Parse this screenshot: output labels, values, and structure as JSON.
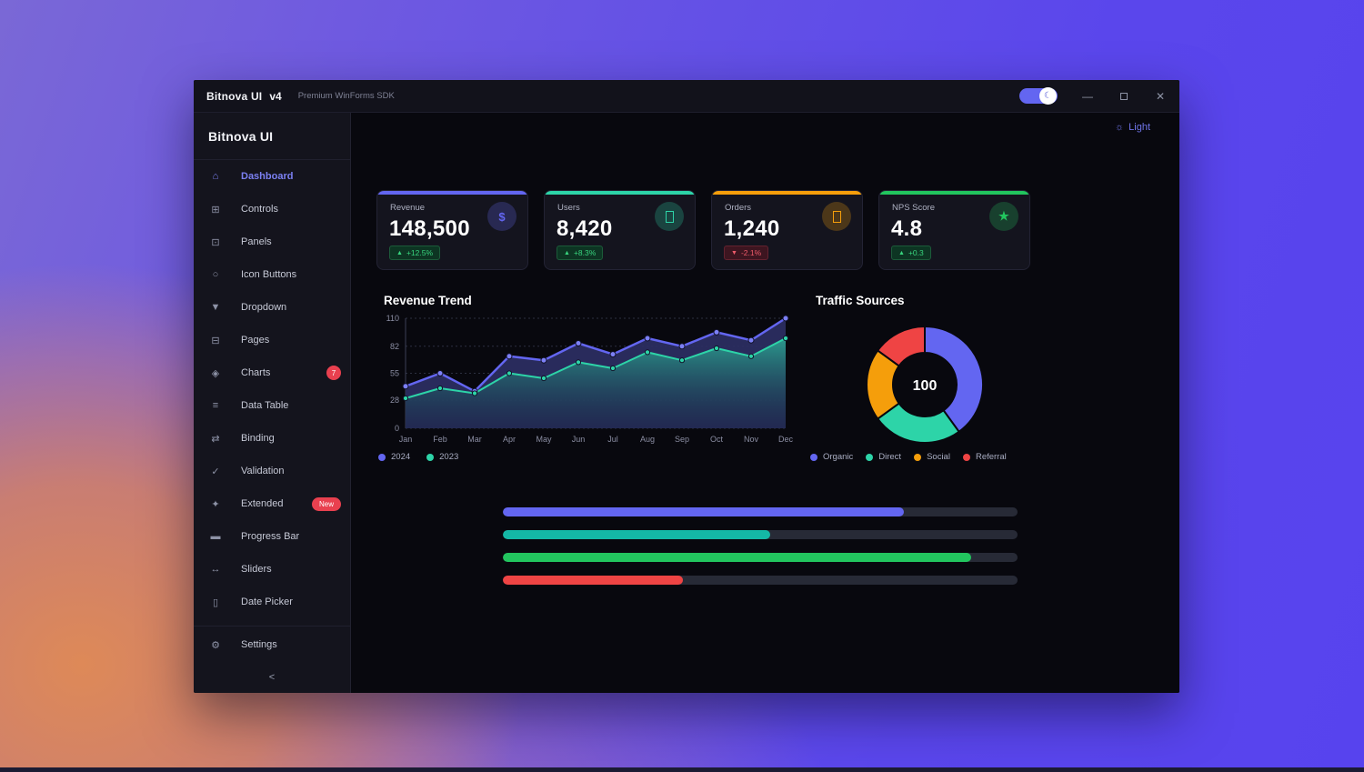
{
  "titlebar": {
    "app_title": "Bitnova UI",
    "app_version": "v4",
    "subtitle": "Premium WinForms SDK",
    "theme_toggle": {
      "state": "on",
      "knob_icon": "moon-icon",
      "knob_glyph": "☾"
    },
    "window_controls": {
      "minimize_glyph": "—",
      "close_glyph": "✕"
    }
  },
  "sidebar": {
    "brand": "Bitnova UI",
    "items": [
      {
        "label": "Dashboard",
        "icon": "home-icon",
        "active": true
      },
      {
        "label": "Controls",
        "icon": "grid-icon"
      },
      {
        "label": "Panels",
        "icon": "panel-icon"
      },
      {
        "label": "Icon Buttons",
        "icon": "circle-icon"
      },
      {
        "label": "Dropdown",
        "icon": "dropdown-icon"
      },
      {
        "label": "Pages",
        "icon": "pages-icon"
      },
      {
        "label": "Charts",
        "icon": "charts-icon",
        "badge": {
          "text": "7",
          "shape": "circle"
        }
      },
      {
        "label": "Data Table",
        "icon": "list-icon"
      },
      {
        "label": "Binding",
        "icon": "swap-icon"
      },
      {
        "label": "Validation",
        "icon": "check-icon"
      },
      {
        "label": "Extended",
        "icon": "sparkle-icon",
        "badge": {
          "text": "New",
          "shape": "pill"
        }
      },
      {
        "label": "Progress Bar",
        "icon": "progress-icon"
      },
      {
        "label": "Sliders",
        "icon": "slider-icon"
      },
      {
        "label": "Date Picker",
        "icon": "calendar-icon"
      }
    ],
    "footer_item": {
      "label": "Settings",
      "icon": "gear-icon"
    },
    "collapse_glyph": "<"
  },
  "main": {
    "theme_button_label": "Light",
    "theme_button_icon": "sun-icon"
  },
  "stat_cards": [
    {
      "label": "Revenue",
      "value": "148,500",
      "delta": "+12.5%",
      "trend": "up",
      "accent": "#6366f1",
      "icon": "dollar-icon",
      "icon_glyph": "$"
    },
    {
      "label": "Users",
      "value": "8,420",
      "delta": "+8.3%",
      "trend": "up",
      "accent": "#2dd4a8",
      "icon": "users-icon",
      "icon_glyph": ""
    },
    {
      "label": "Orders",
      "value": "1,240",
      "delta": "-2.1%",
      "trend": "down",
      "accent": "#f59e0b",
      "icon": "orders-icon",
      "icon_glyph": ""
    },
    {
      "label": "NPS Score",
      "value": "4.8",
      "delta": "+0.3",
      "trend": "up",
      "accent": "#22c55e",
      "icon": "star-icon",
      "icon_glyph": "★"
    }
  ],
  "chart_data": [
    {
      "type": "area",
      "title": "Revenue Trend",
      "x": [
        "Jan",
        "Feb",
        "Mar",
        "Apr",
        "May",
        "Jun",
        "Jul",
        "Aug",
        "Sep",
        "Oct",
        "Nov",
        "Dec"
      ],
      "series": [
        {
          "name": "2024",
          "color": "#6366f1",
          "values": [
            42,
            55,
            37,
            72,
            68,
            85,
            74,
            90,
            82,
            96,
            88,
            110
          ]
        },
        {
          "name": "2023",
          "color": "#2dd4a8",
          "values": [
            30,
            40,
            35,
            55,
            50,
            66,
            60,
            76,
            68,
            80,
            72,
            90
          ]
        }
      ],
      "ylim": [
        0,
        110
      ],
      "yticks": [
        0,
        28,
        55,
        82,
        110
      ],
      "grid": true,
      "legend_position": "bottom"
    },
    {
      "type": "pie",
      "title": "Traffic Sources",
      "donut": true,
      "center_label": "100",
      "slices": [
        {
          "label": "Organic",
          "value": 40,
          "color": "#6366f1"
        },
        {
          "label": "Direct",
          "value": 25,
          "color": "#2dd4a8"
        },
        {
          "label": "Social",
          "value": 20,
          "color": "#f59e0b"
        },
        {
          "label": "Referral",
          "value": 15,
          "color": "#ef4444"
        }
      ],
      "legend_position": "bottom"
    },
    {
      "type": "bar",
      "title": "",
      "orientation": "horizontal",
      "max": 100,
      "values": [
        78,
        52,
        91,
        35
      ],
      "colors": [
        "#6366f1",
        "#14b8a6",
        "#22c55e",
        "#ef4444"
      ]
    }
  ]
}
